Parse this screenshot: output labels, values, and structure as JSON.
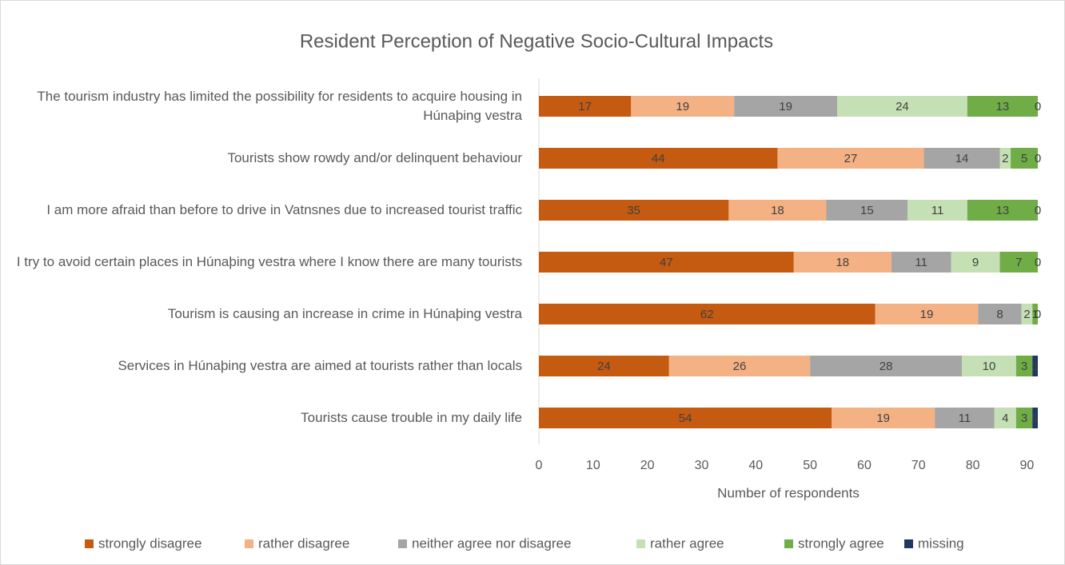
{
  "chart_data": {
    "type": "stacked_bar_horizontal",
    "title": "Resident Perception of Negative Socio-Cultural Impacts",
    "x_label": "Number of respondents",
    "categories": [
      "The tourism industry has limited the possibility for residents to acquire housing in Húnaþing vestra",
      "Tourists show rowdy and/or delinquent behaviour",
      "I am more afraid than before to drive in Vatnsnes due to increased tourist traffic",
      "I try to avoid certain places in Húnaþing vestra where I know there are many tourists",
      "Tourism is causing an increase in crime in Húnaþing vestra",
      "Services in Húnaþing vestra are aimed at tourists rather than locals",
      "Tourists cause trouble in my daily life"
    ],
    "series": [
      {
        "name": "strongly disagree",
        "color": "#c55a11",
        "values": [
          17,
          44,
          35,
          47,
          62,
          24,
          54
        ]
      },
      {
        "name": "rather disagree",
        "color": "#f4b183",
        "values": [
          19,
          27,
          18,
          18,
          19,
          26,
          19
        ]
      },
      {
        "name": "neither agree nor disagree",
        "color": "#a5a5a5",
        "values": [
          19,
          14,
          15,
          11,
          8,
          28,
          11
        ]
      },
      {
        "name": "rather agree",
        "color": "#c5e0b4",
        "values": [
          24,
          2,
          11,
          9,
          2,
          10,
          4
        ]
      },
      {
        "name": "strongly agree",
        "color": "#70ad47",
        "values": [
          13,
          5,
          13,
          7,
          1,
          3,
          3
        ]
      },
      {
        "name": "missing",
        "color": "#1f3864",
        "values": [
          0,
          0,
          0,
          0,
          0,
          1,
          1
        ]
      }
    ],
    "xlim": [
      0,
      92
    ],
    "xticks": [
      0,
      10,
      20,
      30,
      40,
      50,
      60,
      70,
      80,
      90
    ],
    "grid": false,
    "legend": "bottom"
  }
}
